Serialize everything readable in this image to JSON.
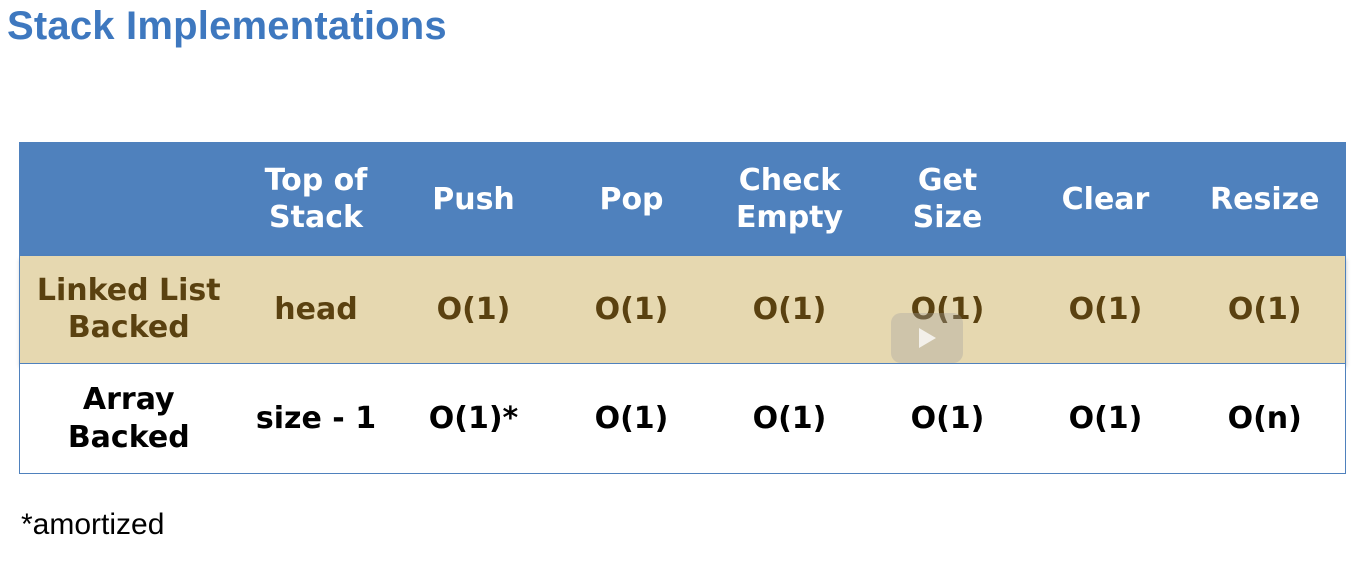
{
  "title": "Stack Implementations",
  "table": {
    "headers": [
      "",
      "Top of\nStack",
      "Push",
      "Pop",
      "Check\nEmpty",
      "Get\nSize",
      "Clear",
      "Resize"
    ],
    "rows": [
      {
        "label": "Linked List\nBacked",
        "cells": [
          "head",
          "O(1)",
          "O(1)",
          "O(1)",
          "O(1)",
          "O(1)",
          "O(1)"
        ]
      },
      {
        "label": "Array\nBacked",
        "cells": [
          "size - 1",
          "O(1)*",
          "O(1)",
          "O(1)",
          "O(1)",
          "O(1)",
          "O(n)"
        ]
      }
    ]
  },
  "footnote": "*amortized",
  "colors": {
    "title": "#3E78BF",
    "header_bg": "#4F81BD",
    "highlight_row_bg": "#E6D8B0",
    "highlight_text": "#5A4110"
  },
  "overlay_icon": "play-icon"
}
